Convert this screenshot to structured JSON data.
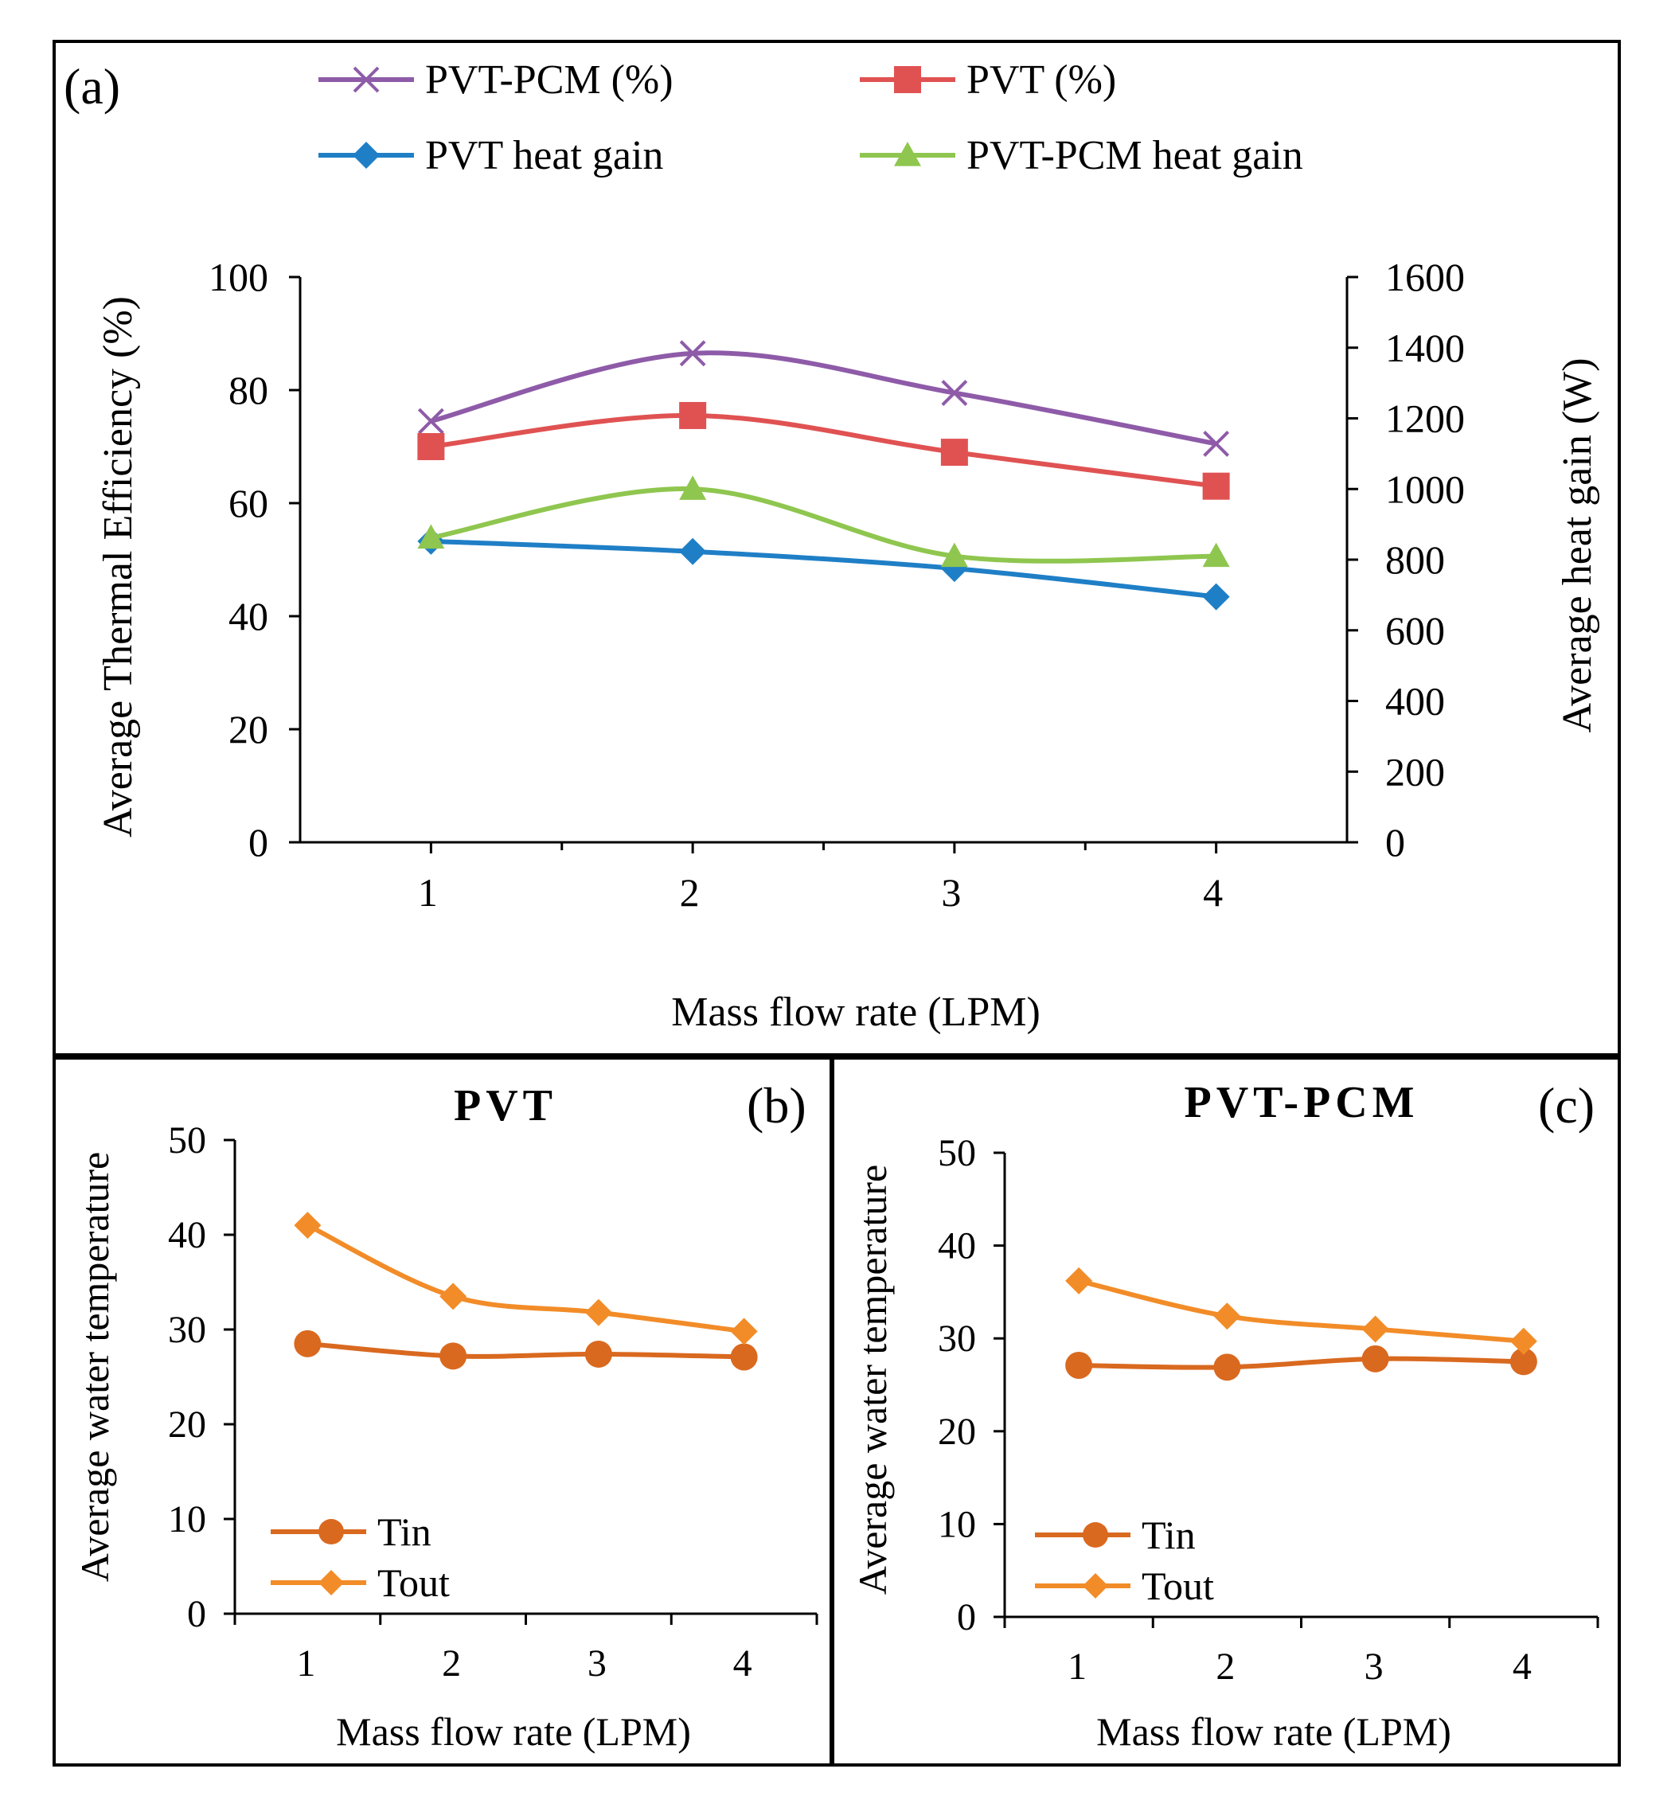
{
  "chart_data": [
    {
      "id": "a",
      "type": "line",
      "panel_label": "(a)",
      "title": "",
      "xlabel": "Mass flow rate (LPM)",
      "ylabel": "Average Thermal Efficiency (%)",
      "y2label": "Average heat gain (W)",
      "categories": [
        "1",
        "2",
        "3",
        "4"
      ],
      "x": [
        1,
        2,
        3,
        4
      ],
      "ylim": [
        0,
        100
      ],
      "yticks": [
        "0",
        "20",
        "40",
        "60",
        "80",
        "100"
      ],
      "y2lim": [
        0,
        1600
      ],
      "y2ticks": [
        "0",
        "200",
        "400",
        "600",
        "800",
        "1000",
        "1200",
        "1400",
        "1600"
      ],
      "legend_position": "top",
      "series": [
        {
          "name": "PVT-PCM (%)",
          "axis": "left",
          "marker": "x",
          "color": "#8e5ba8",
          "values": [
            74.5,
            86.5,
            79.5,
            70.5
          ]
        },
        {
          "name": "PVT (%)",
          "axis": "left",
          "marker": "square",
          "color": "#e05252",
          "values": [
            70,
            75.5,
            69,
            63
          ]
        },
        {
          "name": "PVT heat gain",
          "axis": "right",
          "marker": "diamond",
          "color": "#1f7fc6",
          "values": [
            852,
            823,
            775,
            695
          ]
        },
        {
          "name": "PVT-PCM heat gain",
          "axis": "right",
          "marker": "triangle",
          "color": "#8fc64f",
          "values": [
            862,
            1000,
            810,
            810
          ]
        }
      ]
    },
    {
      "id": "b",
      "type": "line",
      "panel_label": "(b)",
      "title": "PVT",
      "xlabel": "Mass flow rate (LPM)",
      "ylabel": "Average water temperature",
      "categories": [
        "1",
        "2",
        "3",
        "4"
      ],
      "x": [
        1,
        2,
        3,
        4
      ],
      "ylim": [
        0,
        50
      ],
      "yticks": [
        "0",
        "10",
        "20",
        "30",
        "40",
        "50"
      ],
      "legend_position": "bottom-left",
      "series": [
        {
          "name": "Tin",
          "marker": "circle",
          "color": "#d9691f",
          "values": [
            28.5,
            27.2,
            27.4,
            27.1
          ]
        },
        {
          "name": "Tout",
          "marker": "diamond",
          "color": "#f28c28",
          "values": [
            41,
            33.5,
            31.8,
            29.8
          ]
        }
      ]
    },
    {
      "id": "c",
      "type": "line",
      "panel_label": "(c)",
      "title": "PVT-PCM",
      "xlabel": "Mass flow rate (LPM)",
      "ylabel": "Average water temperature",
      "categories": [
        "1",
        "2",
        "3",
        "4"
      ],
      "x": [
        1,
        2,
        3,
        4
      ],
      "ylim": [
        0,
        50
      ],
      "yticks": [
        "0",
        "10",
        "20",
        "30",
        "40",
        "50"
      ],
      "legend_position": "bottom-left",
      "series": [
        {
          "name": "Tin",
          "marker": "circle",
          "color": "#d9691f",
          "values": [
            27.1,
            26.9,
            27.8,
            27.5
          ]
        },
        {
          "name": "Tout",
          "marker": "diamond",
          "color": "#f28c28",
          "values": [
            36.2,
            32.4,
            31,
            29.7
          ]
        }
      ]
    }
  ]
}
